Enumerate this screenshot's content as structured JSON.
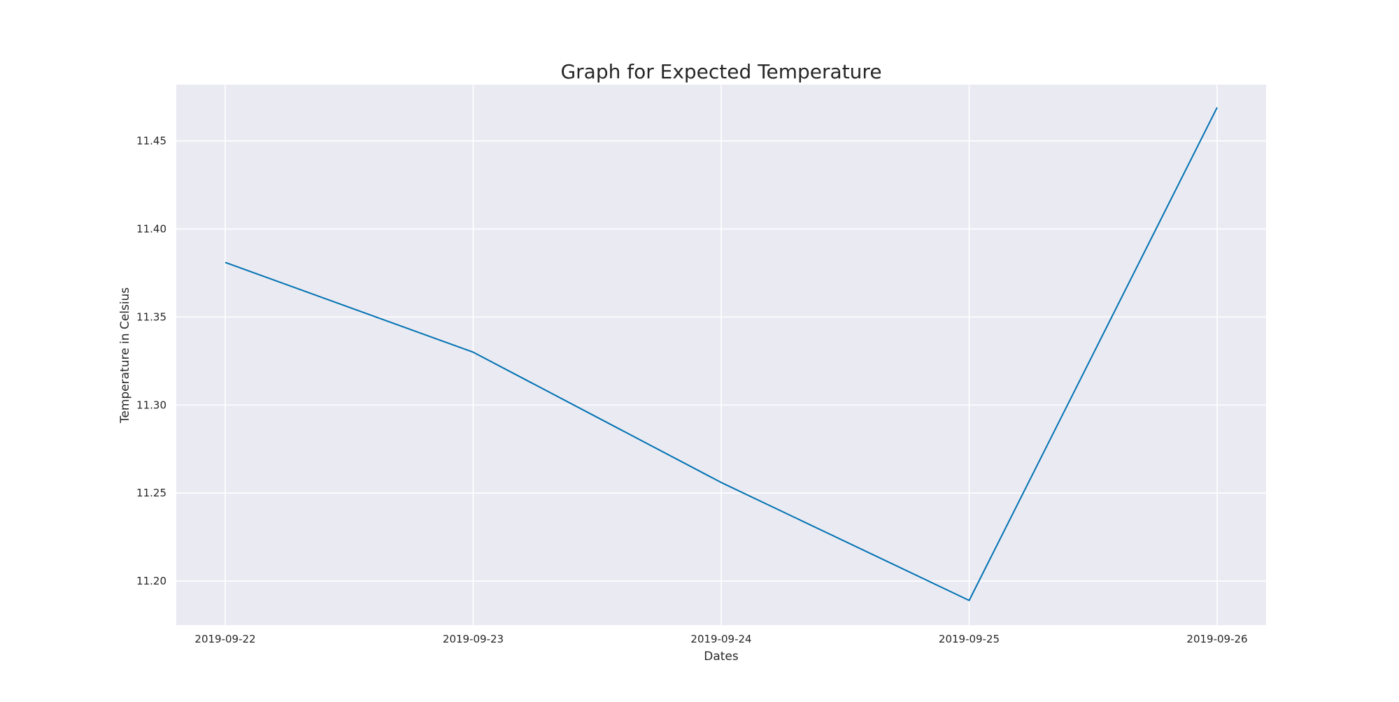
{
  "chart_data": {
    "type": "line",
    "title": "Graph for Expected Temperature",
    "xlabel": "Dates",
    "ylabel": "Temperature in Celsius",
    "x": [
      "2019-09-22",
      "2019-09-23",
      "2019-09-24",
      "2019-09-25",
      "2019-09-26"
    ],
    "series": [
      {
        "values": [
          11.381,
          11.33,
          11.256,
          11.189,
          11.469
        ]
      }
    ],
    "ylim": [
      11.175,
      11.482
    ],
    "yticks": [
      11.2,
      11.25,
      11.3,
      11.35,
      11.4,
      11.45
    ],
    "ytick_labels": [
      "11.20",
      "11.25",
      "11.30",
      "11.35",
      "11.40",
      "11.45"
    ],
    "grid": true,
    "colors": {
      "line": "#0072b2",
      "plot_background": "#eaeaf2",
      "grid": "#ffffff"
    }
  }
}
